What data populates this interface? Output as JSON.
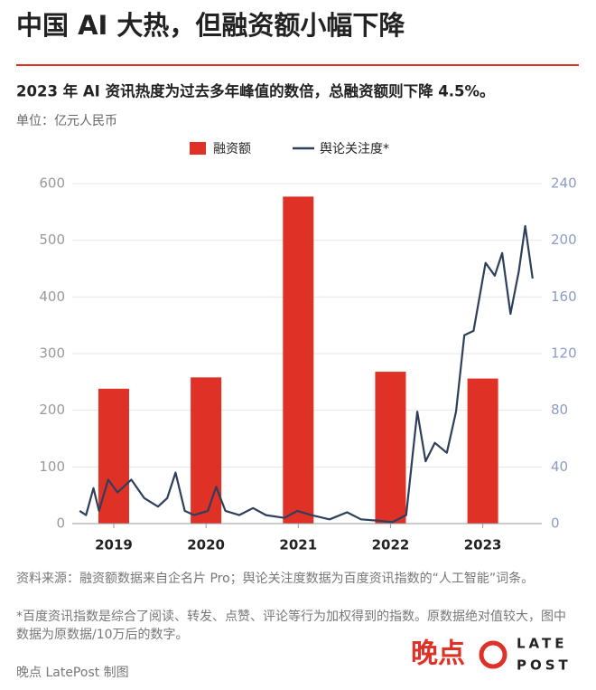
{
  "chart_data": {
    "type": "combo",
    "title": "中国 AI 大热，但融资额小幅下降",
    "subtitle": "2023 年 AI 资讯热度为过去多年峰值的数倍，总融资额则下降 4.5%。",
    "unit": "单位：亿元人民币",
    "xlim": [
      2018.55,
      2023.64
    ],
    "xticks": [
      2019,
      2020,
      2021,
      2022,
      2023
    ],
    "ylim": [
      0,
      600
    ],
    "yticks": [
      0,
      100,
      200,
      300,
      400,
      500,
      600
    ],
    "y2lim": [
      0,
      240
    ],
    "y2ticks": [
      0,
      40,
      80,
      120,
      160,
      200,
      240
    ],
    "grid": true,
    "legend": "top",
    "series": [
      {
        "name": "融资额",
        "type": "bar",
        "color": "#e03127",
        "x": [
          2019,
          2020,
          2021,
          2022,
          2023
        ],
        "values": [
          238,
          258,
          577,
          268,
          256
        ]
      },
      {
        "name": "舆论关注度*",
        "type": "line",
        "axis": "y2",
        "color": "#2e3f5c",
        "x": [
          2018.63,
          2018.7,
          2018.78,
          2018.84,
          2018.94,
          2019.04,
          2019.19,
          2019.33,
          2019.48,
          2019.58,
          2019.67,
          2019.77,
          2019.87,
          2020.02,
          2020.11,
          2020.21,
          2020.36,
          2020.51,
          2020.65,
          2020.85,
          2020.99,
          2021.14,
          2021.34,
          2021.53,
          2021.68,
          2021.88,
          2022.02,
          2022.17,
          2022.29,
          2022.38,
          2022.48,
          2022.61,
          2022.71,
          2022.8,
          2022.9,
          2023.03,
          2023.13,
          2023.21,
          2023.3,
          2023.39,
          2023.46,
          2023.54
        ],
        "values": [
          9,
          6,
          25,
          9,
          31,
          22,
          31,
          18,
          12,
          18,
          36,
          9,
          6,
          9,
          26,
          9,
          6,
          11,
          6,
          4,
          9,
          6,
          3,
          8,
          3,
          2,
          1,
          6,
          79,
          44,
          57,
          50,
          79,
          133,
          136,
          184,
          175,
          191,
          148,
          178,
          210,
          173
        ]
      }
    ],
    "notes": [
      "资料来源：融资额数据来自企名片 Pro；舆论关注度数据为百度资讯指数的“人工智能”词条。",
      "*百度资讯指数是综合了阅读、转发、点赞、评论等行为加权得到的指数。原数据绝对值较大，图中数据为原数据/10万后的数字。"
    ],
    "credit": "晚点 LatePost 制图",
    "logo": {
      "cn": "晚点",
      "en_top": "LATE",
      "en_bottom": "POST"
    }
  }
}
